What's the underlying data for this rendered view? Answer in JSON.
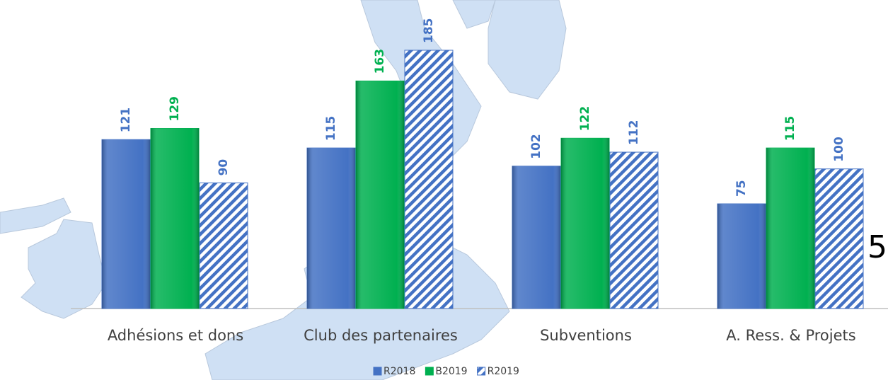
{
  "chart_data": {
    "type": "bar",
    "categories": [
      "Adhésions et dons",
      "Club des partenaires",
      "Subventions",
      "A. Ress. & Projets"
    ],
    "series": [
      {
        "name": "R2018",
        "color": "#4472c4",
        "values": [
          121,
          115,
          102,
          75
        ]
      },
      {
        "name": "B2019",
        "color": "#00b050",
        "values": [
          129,
          163,
          122,
          115
        ]
      },
      {
        "name": "R2019",
        "color": "#4472c4",
        "hatch": true,
        "values": [
          90,
          185,
          112,
          100
        ]
      }
    ],
    "annotations": [
      "5"
    ],
    "legend": "bottom"
  }
}
